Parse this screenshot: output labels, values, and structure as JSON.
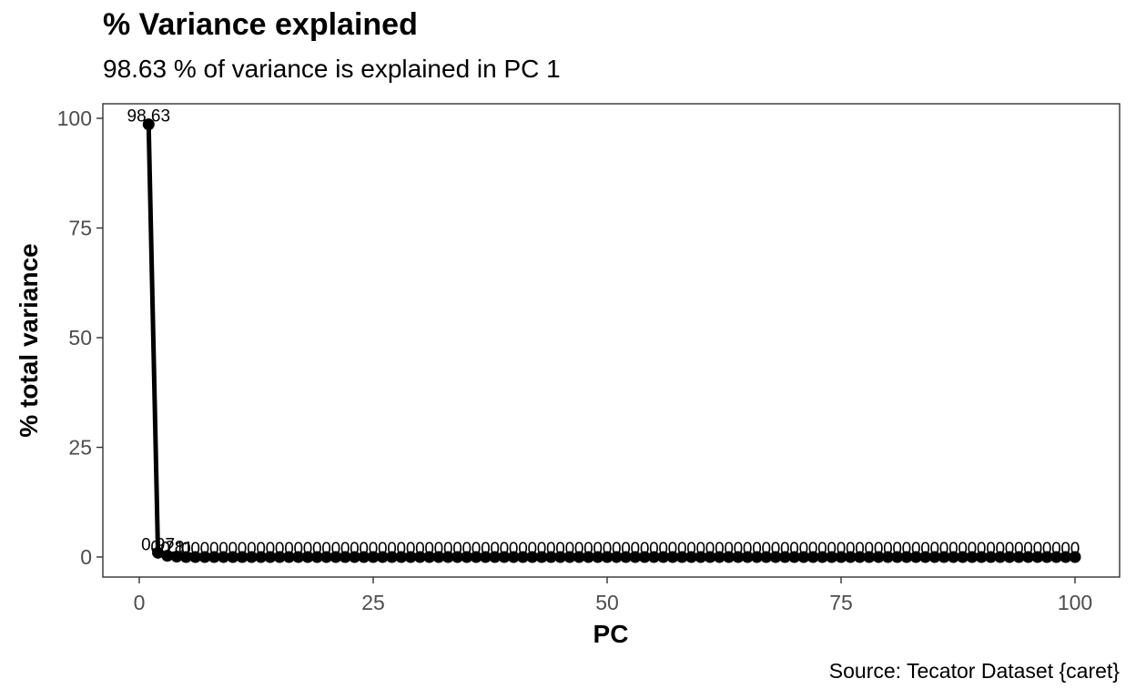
{
  "chart_data": {
    "type": "line",
    "title": "% Variance explained",
    "subtitle": "98.63 % of variance is explained in PC 1",
    "caption": "Source: Tecator Dataset {caret}",
    "xlabel": "PC",
    "ylabel": "% total variance",
    "xlim": [
      0,
      100
    ],
    "ylim": [
      0,
      100
    ],
    "x_ticks": [
      0,
      25,
      50,
      75,
      100
    ],
    "y_ticks": [
      0,
      25,
      50,
      75,
      100
    ],
    "grid": false,
    "line_color": "#000000",
    "point_color": "#000000",
    "series": [
      {
        "x": [
          1,
          2,
          3,
          4,
          5,
          6,
          7,
          8,
          9,
          10,
          11,
          12,
          13,
          14,
          15,
          16,
          17,
          18,
          19,
          20,
          21,
          22,
          23,
          24,
          25,
          26,
          27,
          28,
          29,
          30,
          31,
          32,
          33,
          34,
          35,
          36,
          37,
          38,
          39,
          40,
          41,
          42,
          43,
          44,
          45,
          46,
          47,
          48,
          49,
          50,
          51,
          52,
          53,
          54,
          55,
          56,
          57,
          58,
          59,
          60,
          61,
          62,
          63,
          64,
          65,
          66,
          67,
          68,
          69,
          70,
          71,
          72,
          73,
          74,
          75,
          76,
          77,
          78,
          79,
          80,
          81,
          82,
          83,
          84,
          85,
          86,
          87,
          88,
          89,
          90,
          91,
          92,
          93,
          94,
          95,
          96,
          97,
          98,
          99,
          100
        ],
        "y": [
          98.63,
          0.97,
          0.28,
          0.11,
          0,
          0,
          0,
          0,
          0,
          0,
          0,
          0,
          0,
          0,
          0,
          0,
          0,
          0,
          0,
          0,
          0,
          0,
          0,
          0,
          0,
          0,
          0,
          0,
          0,
          0,
          0,
          0,
          0,
          0,
          0,
          0,
          0,
          0,
          0,
          0,
          0,
          0,
          0,
          0,
          0,
          0,
          0,
          0,
          0,
          0,
          0,
          0,
          0,
          0,
          0,
          0,
          0,
          0,
          0,
          0,
          0,
          0,
          0,
          0,
          0,
          0,
          0,
          0,
          0,
          0,
          0,
          0,
          0,
          0,
          0,
          0,
          0,
          0,
          0,
          0,
          0,
          0,
          0,
          0,
          0,
          0,
          0,
          0,
          0,
          0,
          0,
          0,
          0,
          0,
          0,
          0,
          0,
          0,
          0,
          0
        ],
        "labels": [
          "98.63",
          "0.97",
          "0.28",
          "0.11",
          "0",
          "0",
          "0",
          "0",
          "0",
          "0",
          "0",
          "0",
          "0",
          "0",
          "0",
          "0",
          "0",
          "0",
          "0",
          "0",
          "0",
          "0",
          "0",
          "0",
          "0",
          "0",
          "0",
          "0",
          "0",
          "0",
          "0",
          "0",
          "0",
          "0",
          "0",
          "0",
          "0",
          "0",
          "0",
          "0",
          "0",
          "0",
          "0",
          "0",
          "0",
          "0",
          "0",
          "0",
          "0",
          "0",
          "0",
          "0",
          "0",
          "0",
          "0",
          "0",
          "0",
          "0",
          "0",
          "0",
          "0",
          "0",
          "0",
          "0",
          "0",
          "0",
          "0",
          "0",
          "0",
          "0",
          "0",
          "0",
          "0",
          "0",
          "0",
          "0",
          "0",
          "0",
          "0",
          "0",
          "0",
          "0",
          "0",
          "0",
          "0",
          "0",
          "0",
          "0",
          "0",
          "0",
          "0",
          "0",
          "0",
          "0",
          "0",
          "0",
          "0",
          "0",
          "0",
          "0"
        ]
      }
    ]
  }
}
